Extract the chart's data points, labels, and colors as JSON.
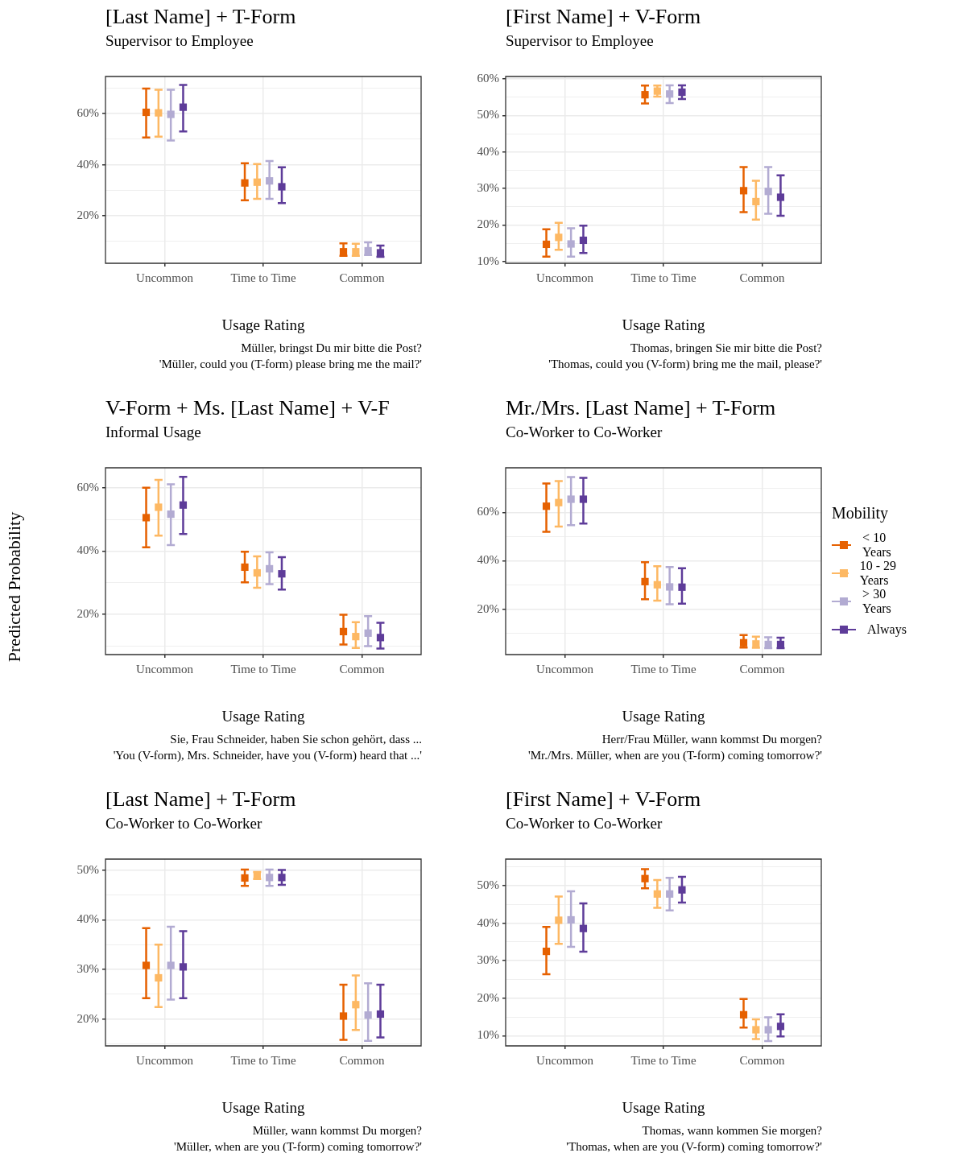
{
  "chart_data": [
    {
      "type": "scatter",
      "title": "[Last Name] + T-Form",
      "subtitle": "Supervisor to Employee",
      "xlabel": "Usage Rating",
      "categories": [
        "Uncommon",
        "Time to Time",
        "Common"
      ],
      "ylim": [
        1.5,
        74.5
      ],
      "yticks": [
        {
          "value": 10,
          "label": null
        },
        {
          "value": 20,
          "label": "20%"
        },
        {
          "value": 30,
          "label": null
        },
        {
          "value": 40,
          "label": "40%"
        },
        {
          "value": 50,
          "label": null
        },
        {
          "value": 60,
          "label": "60%"
        },
        {
          "value": 70,
          "label": null
        }
      ],
      "grid": true,
      "marker": "square",
      "annotations": [
        "Müller, bringst Du mir bitte die Post?",
        "'Müller, could you (T-form) please bring me the mail?'"
      ],
      "series": [
        {
          "color": "#e66101",
          "values": [
            60.5,
            32.9,
            6.0
          ],
          "errors": [
            [
              50.7,
              69.8
            ],
            [
              26.1,
              40.6
            ],
            [
              4.4,
              9.3
            ]
          ]
        },
        {
          "color": "#fdb863",
          "values": [
            60.3,
            33.2,
            6.0
          ],
          "errors": [
            [
              51.0,
              69.3
            ],
            [
              26.7,
              40.3
            ],
            [
              4.4,
              9.1
            ]
          ]
        },
        {
          "color": "#b2abd2",
          "values": [
            59.7,
            33.7,
            6.4
          ],
          "errors": [
            [
              49.5,
              69.3
            ],
            [
              26.7,
              41.5
            ],
            [
              4.7,
              9.7
            ]
          ]
        },
        {
          "color": "#5e3c99",
          "values": [
            62.5,
            31.4,
            5.6
          ],
          "errors": [
            [
              53.0,
              71.2
            ],
            [
              25.0,
              39.0
            ],
            [
              4.0,
              8.4
            ]
          ]
        }
      ]
    },
    {
      "type": "scatter",
      "title": "[First Name] + V-Form",
      "subtitle": "Supervisor to Employee",
      "xlabel": "Usage Rating",
      "categories": [
        "Uncommon",
        "Time to Time",
        "Common"
      ],
      "ylim": [
        9.5,
        60.7
      ],
      "yticks": [
        {
          "value": 10,
          "label": "10%"
        },
        {
          "value": 15,
          "label": null
        },
        {
          "value": 20,
          "label": "20%"
        },
        {
          "value": 25,
          "label": null
        },
        {
          "value": 30,
          "label": "30%"
        },
        {
          "value": 35,
          "label": null
        },
        {
          "value": 40,
          "label": "40%"
        },
        {
          "value": 45,
          "label": null
        },
        {
          "value": 50,
          "label": "50%"
        },
        {
          "value": 55,
          "label": null
        },
        {
          "value": 60,
          "label": "60%"
        }
      ],
      "grid": true,
      "marker": "square",
      "annotations": [
        "Thomas, bringen Sie mir bitte die Post?",
        "'Thomas, could you (V-form) bring me the mail, please?'"
      ],
      "series": [
        {
          "color": "#e66101",
          "values": [
            14.7,
            55.7,
            29.4
          ],
          "errors": [
            [
              11.3,
              18.8
            ],
            [
              53.3,
              58.2
            ],
            [
              23.5,
              35.9
            ]
          ]
        },
        {
          "color": "#fdb863",
          "values": [
            16.6,
            56.7,
            26.4
          ],
          "errors": [
            [
              13.2,
              20.6
            ],
            [
              55.2,
              58.2
            ],
            [
              21.5,
              32.1
            ]
          ]
        },
        {
          "color": "#b2abd2",
          "values": [
            14.8,
            55.9,
            29.2
          ],
          "errors": [
            [
              11.3,
              19.1
            ],
            [
              53.4,
              58.3
            ],
            [
              23.1,
              35.9
            ]
          ]
        },
        {
          "color": "#5e3c99",
          "values": [
            15.8,
            56.4,
            27.6
          ],
          "errors": [
            [
              12.3,
              19.8
            ],
            [
              54.5,
              58.3
            ],
            [
              22.5,
              33.6
            ]
          ]
        }
      ]
    },
    {
      "type": "scatter",
      "title": "V-Form + Ms. [Last Name] + V-F",
      "subtitle": "Informal Usage",
      "xlabel": "Usage Rating",
      "ylabel": "Predicted Probability",
      "categories": [
        "Uncommon",
        "Time to Time",
        "Common"
      ],
      "ylim": [
        7.2,
        66.4
      ],
      "yticks": [
        {
          "value": 10,
          "label": null
        },
        {
          "value": 20,
          "label": "20%"
        },
        {
          "value": 30,
          "label": null
        },
        {
          "value": 40,
          "label": "40%"
        },
        {
          "value": 50,
          "label": null
        },
        {
          "value": 60,
          "label": "60%"
        }
      ],
      "grid": true,
      "marker": "square",
      "annotations": [
        "Sie, Frau Schneider, haben Sie schon gehört, dass ...",
        "'You (V-form), Mrs. Schneider, have you (V-form) heard that ...'"
      ],
      "series": [
        {
          "color": "#e66101",
          "values": [
            50.6,
            34.9,
            14.5
          ],
          "errors": [
            [
              41.2,
              60.1
            ],
            [
              30.1,
              39.8
            ],
            [
              10.4,
              19.8
            ]
          ]
        },
        {
          "color": "#fdb863",
          "values": [
            53.9,
            33.1,
            12.9
          ],
          "errors": [
            [
              44.9,
              62.6
            ],
            [
              28.4,
              38.3
            ],
            [
              9.3,
              17.5
            ]
          ]
        },
        {
          "color": "#b2abd2",
          "values": [
            51.7,
            34.4,
            14.0
          ],
          "errors": [
            [
              41.9,
              61.2
            ],
            [
              29.5,
              39.6
            ],
            [
              9.9,
              19.4
            ]
          ]
        },
        {
          "color": "#5e3c99",
          "values": [
            54.6,
            32.8,
            12.6
          ],
          "errors": [
            [
              45.4,
              63.5
            ],
            [
              27.8,
              38.1
            ],
            [
              9.1,
              17.3
            ]
          ]
        }
      ]
    },
    {
      "type": "scatter",
      "title": "Mr./Mrs. [Last Name] + T-Form",
      "subtitle": "Co-Worker to Co-Worker",
      "xlabel": "Usage Rating",
      "categories": [
        "Uncommon",
        "Time to Time",
        "Common"
      ],
      "ylim": [
        1.2,
        78.5
      ],
      "yticks": [
        {
          "value": 10,
          "label": null
        },
        {
          "value": 20,
          "label": "20%"
        },
        {
          "value": 30,
          "label": null
        },
        {
          "value": 40,
          "label": "40%"
        },
        {
          "value": 50,
          "label": null
        },
        {
          "value": 60,
          "label": "60%"
        },
        {
          "value": 70,
          "label": null
        }
      ],
      "grid": true,
      "marker": "square",
      "legend": "right",
      "legend_title": "Mobility",
      "annotations": [
        "Herr/Frau Müller, wann kommst Du morgen?",
        "'Mr./Mrs. Müller, when are you (T-form) coming tomorrow?'"
      ],
      "series": [
        {
          "name": "< 10 Years",
          "color": "#e66101",
          "values": [
            62.6,
            31.4,
            6.1
          ],
          "errors": [
            [
              52.0,
              72.0
            ],
            [
              24.1,
              39.4
            ],
            [
              4.1,
              9.3
            ]
          ]
        },
        {
          "name": "10 - 29 Years",
          "color": "#fdb863",
          "values": [
            64.1,
            30.1,
            5.6
          ],
          "errors": [
            [
              54.2,
              73.0
            ],
            [
              23.5,
              37.8
            ],
            [
              4.0,
              8.6
            ]
          ]
        },
        {
          "name": "> 30 Years",
          "color": "#b2abd2",
          "values": [
            65.5,
            29.2,
            5.4
          ],
          "errors": [
            [
              54.8,
              74.7
            ],
            [
              22.0,
              37.4
            ],
            [
              3.9,
              8.4
            ]
          ]
        },
        {
          "name": "Always",
          "color": "#5e3c99",
          "values": [
            65.5,
            29.1,
            5.4
          ],
          "errors": [
            [
              55.4,
              74.3
            ],
            [
              22.3,
              36.9
            ],
            [
              3.9,
              8.2
            ]
          ]
        }
      ]
    },
    {
      "type": "scatter",
      "title": "[Last Name] + T-Form",
      "subtitle": "Co-Worker to Co-Worker",
      "xlabel": "Usage Rating",
      "categories": [
        "Uncommon",
        "Time to Time",
        "Common"
      ],
      "ylim": [
        14.6,
        52.2
      ],
      "yticks": [
        {
          "value": 15,
          "label": null
        },
        {
          "value": 20,
          "label": "20%"
        },
        {
          "value": 25,
          "label": null
        },
        {
          "value": 30,
          "label": "30%"
        },
        {
          "value": 35,
          "label": null
        },
        {
          "value": 40,
          "label": "40%"
        },
        {
          "value": 45,
          "label": null
        },
        {
          "value": 50,
          "label": "50%"
        }
      ],
      "grid": true,
      "marker": "square",
      "annotations": [
        "Müller, wann kommst Du morgen?",
        "'Müller, when are you (T-form) coming tomorrow?'"
      ],
      "series": [
        {
          "color": "#e66101",
          "values": [
            30.8,
            48.4,
            20.6
          ],
          "errors": [
            [
              24.2,
              38.3
            ],
            [
              46.8,
              50.1
            ],
            [
              15.8,
              26.9
            ]
          ]
        },
        {
          "color": "#fdb863",
          "values": [
            28.3,
            48.9,
            22.9
          ],
          "errors": [
            [
              22.4,
              35.0
            ],
            [
              48.2,
              49.6
            ],
            [
              17.8,
              28.8
            ]
          ]
        },
        {
          "color": "#b2abd2",
          "values": [
            30.8,
            48.5,
            20.8
          ],
          "errors": [
            [
              23.9,
              38.6
            ],
            [
              46.8,
              50.1
            ],
            [
              15.6,
              27.2
            ]
          ]
        },
        {
          "color": "#5e3c99",
          "values": [
            30.5,
            48.5,
            21.0
          ],
          "errors": [
            [
              24.2,
              37.7
            ],
            [
              47.0,
              50.0
            ],
            [
              16.3,
              26.9
            ]
          ]
        }
      ]
    },
    {
      "type": "scatter",
      "title": "[First Name] + V-Form",
      "subtitle": "Co-Worker to Co-Worker",
      "xlabel": "Usage Rating",
      "categories": [
        "Uncommon",
        "Time to Time",
        "Common"
      ],
      "ylim": [
        7.3,
        57.1
      ],
      "yticks": [
        {
          "value": 10,
          "label": "10%"
        },
        {
          "value": 15,
          "label": null
        },
        {
          "value": 20,
          "label": "20%"
        },
        {
          "value": 25,
          "label": null
        },
        {
          "value": 30,
          "label": "30%"
        },
        {
          "value": 35,
          "label": null
        },
        {
          "value": 40,
          "label": "40%"
        },
        {
          "value": 45,
          "label": null
        },
        {
          "value": 50,
          "label": "50%"
        },
        {
          "value": 55,
          "label": null
        }
      ],
      "grid": true,
      "marker": "square",
      "annotations": [
        "Thomas, wann kommen Sie morgen?",
        "'Thomas, when are you (V-form) coming tomorrow?'"
      ],
      "series": [
        {
          "color": "#e66101",
          "values": [
            32.5,
            51.9,
            15.6
          ],
          "errors": [
            [
              26.4,
              39.0
            ],
            [
              49.3,
              54.4
            ],
            [
              12.2,
              19.8
            ]
          ]
        },
        {
          "color": "#fdb863",
          "values": [
            40.8,
            47.8,
            11.6
          ],
          "errors": [
            [
              34.5,
              47.1
            ],
            [
              44.1,
              51.5
            ],
            [
              9.1,
              14.4
            ]
          ]
        },
        {
          "color": "#b2abd2",
          "values": [
            40.9,
            47.8,
            11.6
          ],
          "errors": [
            [
              33.7,
              48.5
            ],
            [
              43.4,
              52.1
            ],
            [
              8.6,
              14.9
            ]
          ]
        },
        {
          "color": "#5e3c99",
          "values": [
            38.6,
            48.9,
            12.5
          ],
          "errors": [
            [
              32.4,
              45.3
            ],
            [
              45.5,
              52.4
            ],
            [
              9.8,
              15.7
            ]
          ]
        }
      ]
    }
  ]
}
